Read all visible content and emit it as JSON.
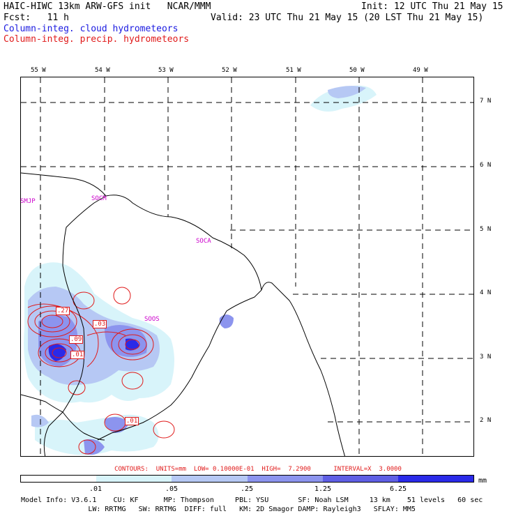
{
  "header": {
    "title": "HAIC-HIWC 13km ARW-GFS init   NCAR/MMM",
    "init": "Init: 12 UTC Thu 21 May 15",
    "fcst": "Fcst:   11 h",
    "valid": "Valid: 23 UTC Thu 21 May 15 (20 LST Thu 21 May 15)",
    "legend_cloud": "Column-integ. cloud hydrometeors",
    "legend_precip": "Column-integ. precip. hydrometeors"
  },
  "colors": {
    "cloud": "#1a1ae0",
    "precip": "#e01a1a",
    "station": "#cc00cc",
    "coast": "#000000"
  },
  "map": {
    "lon_labels": [
      "55 W",
      "54 W",
      "53 W",
      "52 W",
      "51 W",
      "50 W",
      "49 W"
    ],
    "lat_labels": [
      "7 N",
      "6 N",
      "5 N",
      "4 N",
      "3 N",
      "2 N"
    ],
    "stations": [
      "SMJP",
      "SOCM",
      "SOCA",
      "SOOS"
    ],
    "contour_labels": [
      ".27",
      ".03",
      ".09",
      ".01",
      ".01"
    ]
  },
  "contours_info": "CONTOURS:  UNITS=mm  LOW= 0.10000E-01  HIGH=  7.2900      INTERVAL=X  3.0000",
  "colorbar": {
    "values": [
      ".01",
      ".05",
      ".25",
      "1.25",
      "6.25"
    ],
    "unit": "mm",
    "colors": [
      "#ffffff",
      "#d8f4fa",
      "#b6c8f4",
      "#8c94ee",
      "#5f5fe4",
      "#2a2ae8"
    ]
  },
  "footer": {
    "line1": "Model Info: V3.6.1    CU: KF      MP: Thompson     PBL: YSU       SF: Noah LSM     13 km    51 levels   60 sec",
    "line2": "                LW: RRTMG   SW: RRTMG  DIFF: full   KM: 2D Smagor DAMP: Rayleigh3   SFLAY: MM5"
  }
}
